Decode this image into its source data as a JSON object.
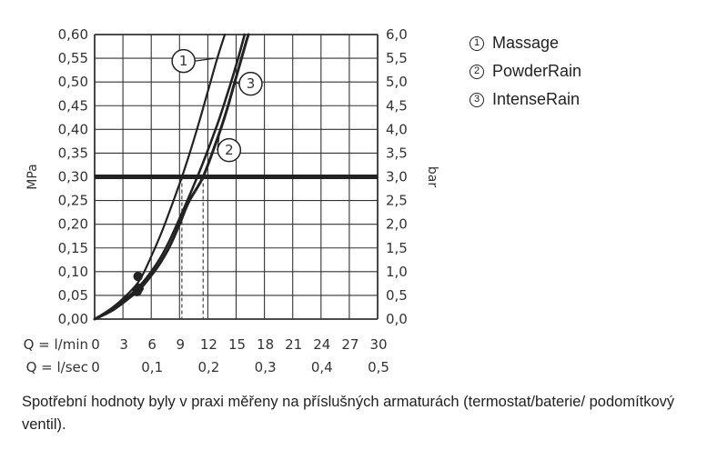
{
  "chart_data": {
    "type": "line",
    "ylabel_left": "MPa",
    "ylabel_right": "bar",
    "xlabel_lmin": "Q = l/min",
    "xlabel_lsec": "Q = l/sec",
    "x_ticks_lmin": [
      "0",
      "3",
      "6",
      "9",
      "12",
      "15",
      "18",
      "21",
      "24",
      "27",
      "30"
    ],
    "x_ticks_lsec": [
      {
        "value": 0,
        "label": "0"
      },
      {
        "value": 0.1,
        "label": "0,1"
      },
      {
        "value": 0.2,
        "label": "0,2"
      },
      {
        "value": 0.3,
        "label": "0,3"
      },
      {
        "value": 0.4,
        "label": "0,4"
      },
      {
        "value": 0.5,
        "label": "0,5"
      }
    ],
    "y_ticks_mpa": [
      "0,00",
      "0,05",
      "0,10",
      "0,15",
      "0,20",
      "0,25",
      "0,30",
      "0,35",
      "0,40",
      "0,45",
      "0,50",
      "0,55",
      "0,60"
    ],
    "y_ticks_bar": [
      "0,0",
      "0,5",
      "1,0",
      "1,5",
      "2,0",
      "2,5",
      "3,0",
      "3,5",
      "4,0",
      "4,5",
      "5,0",
      "5,5",
      "6,0"
    ],
    "xlim": [
      0,
      30
    ],
    "ylim": [
      0,
      0.6
    ],
    "grid": true,
    "reference_pressure": 0.3,
    "series": [
      {
        "label": "1",
        "points": [
          [
            0,
            0
          ],
          [
            2,
            0.026
          ],
          [
            4,
            0.063
          ],
          [
            5,
            0.09
          ],
          [
            6,
            0.132
          ],
          [
            7,
            0.178
          ],
          [
            8,
            0.23
          ],
          [
            9,
            0.285
          ],
          [
            10,
            0.345
          ],
          [
            11,
            0.41
          ],
          [
            12,
            0.48
          ],
          [
            13,
            0.55
          ],
          [
            13.8,
            0.6
          ]
        ],
        "marker": [
          4.6,
          0.09
        ]
      },
      {
        "label": "2",
        "points": [
          [
            0,
            0
          ],
          [
            2,
            0.02
          ],
          [
            4,
            0.05
          ],
          [
            5,
            0.068
          ],
          [
            6,
            0.092
          ],
          [
            7,
            0.12
          ],
          [
            8,
            0.155
          ],
          [
            9,
            0.2
          ],
          [
            10,
            0.248
          ],
          [
            11.5,
            0.3
          ],
          [
            13,
            0.38
          ],
          [
            14,
            0.44
          ],
          [
            15,
            0.51
          ],
          [
            16,
            0.58
          ],
          [
            16.3,
            0.6
          ]
        ],
        "marker": [
          4.7,
          0.065
        ]
      },
      {
        "label": "3",
        "points": [
          [
            0,
            0
          ],
          [
            2,
            0.022
          ],
          [
            4,
            0.055
          ],
          [
            5,
            0.075
          ],
          [
            6,
            0.1
          ],
          [
            7,
            0.13
          ],
          [
            8,
            0.168
          ],
          [
            9,
            0.212
          ],
          [
            10,
            0.258
          ],
          [
            11.5,
            0.33
          ],
          [
            13,
            0.41
          ],
          [
            14,
            0.47
          ],
          [
            15,
            0.535
          ],
          [
            15.9,
            0.6
          ]
        ],
        "marker": [
          4.5,
          0.058
        ]
      }
    ],
    "callouts": [
      {
        "label": "1",
        "series": 0,
        "at": [
          12.7,
          0.55
        ]
      },
      {
        "label": "3",
        "series": 2,
        "at": [
          14.9,
          0.5
        ]
      },
      {
        "label": "2",
        "series": 1,
        "at": [
          13.2,
          0.385
        ]
      }
    ]
  },
  "legend": [
    {
      "num": "1",
      "label": "Massage"
    },
    {
      "num": "2",
      "label": "PowderRain"
    },
    {
      "num": "3",
      "label": "IntenseRain"
    }
  ],
  "caption": "Spotřební hodnoty byly v praxi měřeny na příslušných armaturách (termostat/baterie/ podomítkový ventil)."
}
